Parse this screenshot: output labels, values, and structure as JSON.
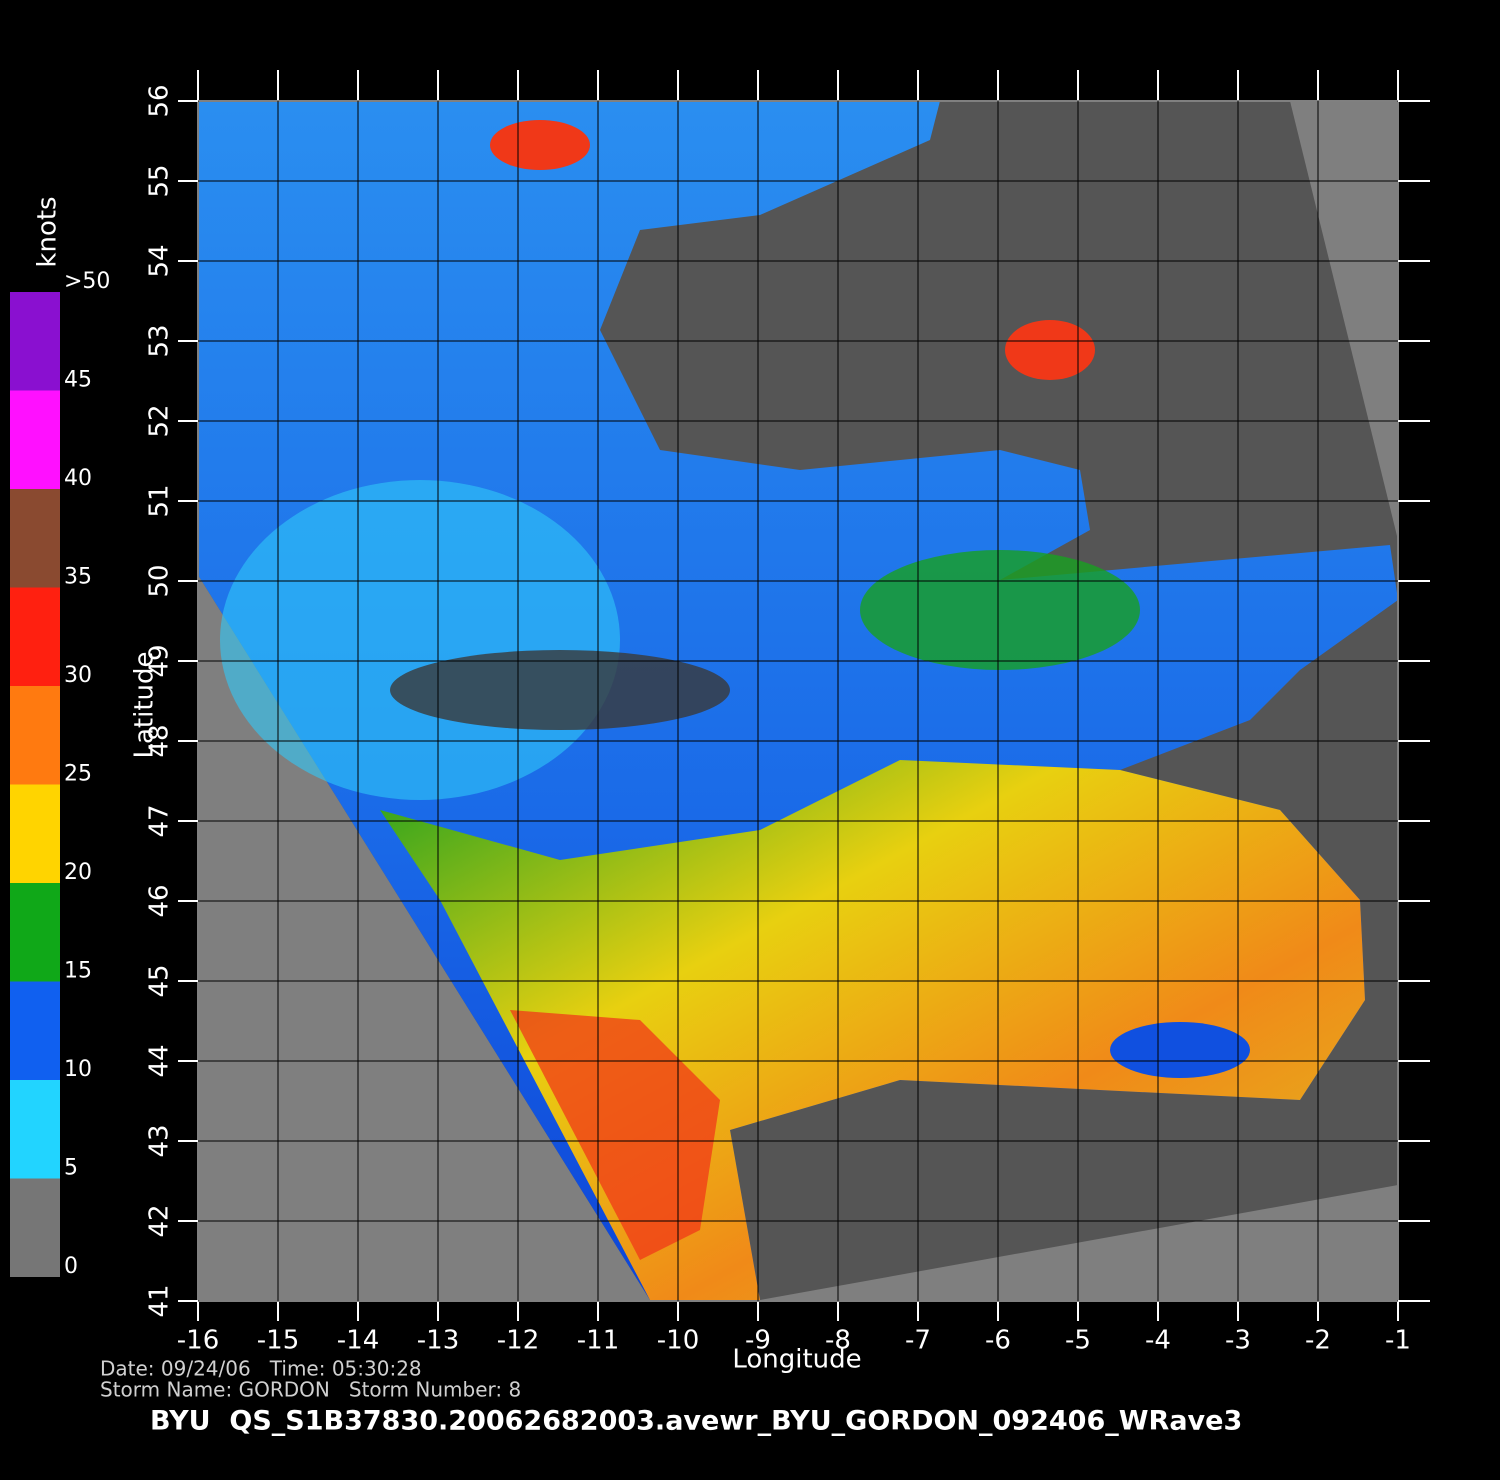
{
  "chart_data": {
    "type": "map",
    "title": "BYU  QS_S1B37830.20062682003.avewr_BYU_GORDON_092406_WRave3",
    "date_line": "Date: 09/24/06   Time: 05:30:28",
    "storm_line": "Storm Name: GORDON   Storm Number: 8",
    "xlabel": "Longitude",
    "ylabel": "Latitude",
    "xlim": [
      -16,
      -1
    ],
    "ylim": [
      41,
      56
    ],
    "xticks": [
      -16,
      -15,
      -14,
      -13,
      -12,
      -11,
      -10,
      -9,
      -8,
      -7,
      -6,
      -5,
      -4,
      -3,
      -2,
      -1
    ],
    "yticks": [
      41,
      42,
      43,
      44,
      45,
      46,
      47,
      48,
      49,
      50,
      51,
      52,
      53,
      54,
      55,
      56
    ],
    "grid": true,
    "colorbar": {
      "label": "knots",
      "lim": [
        0,
        50
      ],
      "ticks": [
        0,
        5,
        10,
        15,
        20,
        25,
        30,
        35,
        40,
        45,
        {
          "value": 50,
          "label": ">50"
        }
      ],
      "colors": [
        "#767676",
        "#22d4ff",
        "#1060f0",
        "#10a818",
        "#ffd400",
        "#ff7a10",
        "#ff2010",
        "#8a4a30",
        "#ff10ff",
        "#8a10d0"
      ]
    }
  }
}
